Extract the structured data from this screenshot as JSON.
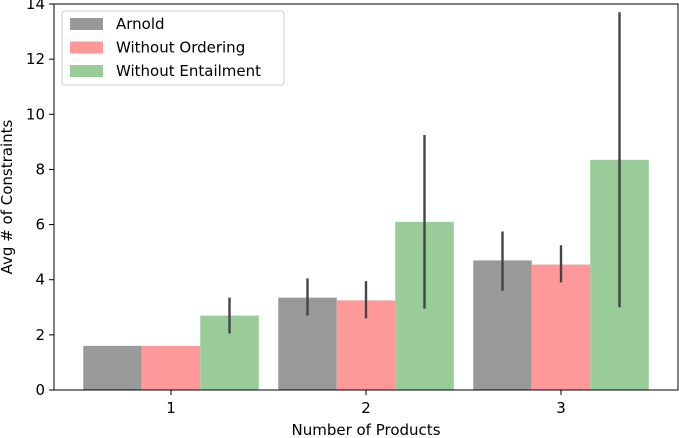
{
  "chart_data": {
    "type": "bar",
    "xlabel": "Number of Products",
    "ylabel": "Avg # of Constraints",
    "categories": [
      "1",
      "2",
      "3"
    ],
    "ylim": [
      0,
      14
    ],
    "yticks": [
      "0",
      "2",
      "4",
      "6",
      "8",
      "10",
      "12",
      "14"
    ],
    "ytick_values": [
      0,
      2,
      4,
      6,
      8,
      10,
      12,
      14
    ],
    "grid": false,
    "legend_position": "top-left",
    "series": [
      {
        "name": "Arnold",
        "color": "#999999",
        "values": [
          1.6,
          3.35,
          4.7
        ],
        "error_low": [
          null,
          2.7,
          3.6
        ],
        "error_high": [
          null,
          4.05,
          5.75
        ]
      },
      {
        "name": "Without Ordering",
        "color": "#ff9999",
        "values": [
          1.6,
          3.25,
          4.55
        ],
        "error_low": [
          null,
          2.6,
          3.9
        ],
        "error_high": [
          null,
          3.95,
          5.25
        ]
      },
      {
        "name": "Without Entailment",
        "color": "#99cc99",
        "values": [
          2.7,
          6.1,
          8.35
        ],
        "error_low": [
          2.05,
          2.95,
          3.0
        ],
        "error_high": [
          3.35,
          9.25,
          13.7
        ]
      }
    ],
    "errorbar_color": "#444444"
  }
}
